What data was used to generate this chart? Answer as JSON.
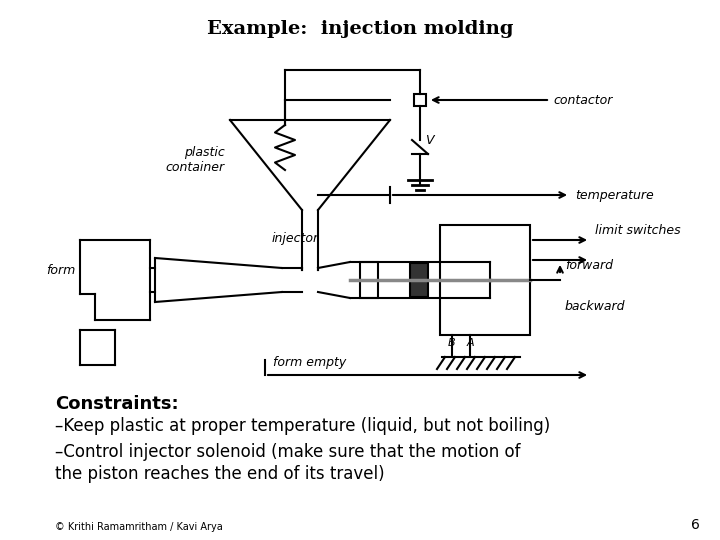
{
  "title": "Example:  injection molding",
  "title_fontsize": 14,
  "title_style": "normal",
  "bg_color": "#ffffff",
  "fg_color": "#000000",
  "constraints_header": "Constraints:",
  "constraint1": "–Keep plastic at proper temperature (liquid, but not boiling)",
  "constraint2": "–Control injector solenoid (make sure that the motion of",
  "constraint3": "the piston reaches the end of its travel)",
  "footer": "© Krithi Ramamritham / Kavi Arya",
  "page_num": "6",
  "labels": {
    "contactor": "contactor",
    "V": "V",
    "plastic_container": "plastic\ncontainer",
    "temperature": "temperature",
    "injector": "injector",
    "form": "form",
    "limit_switches": "limit switches",
    "forward": "forward",
    "backward": "backward",
    "B": "B",
    "A": "A",
    "form_empty": "form empty"
  }
}
